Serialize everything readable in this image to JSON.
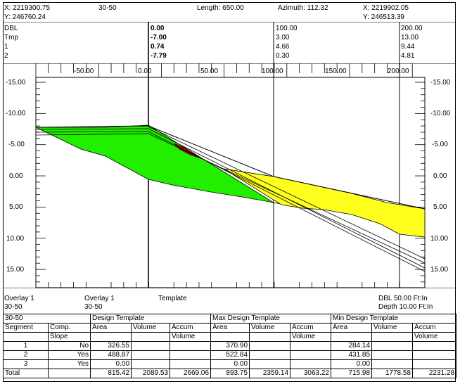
{
  "header": {
    "x_left": "X: 2219300.75",
    "y_left": "Y: 246760.24",
    "section_name": "30-50",
    "length": "Length: 650.00",
    "azimuth": "Azimuth: 112.32",
    "x_right": "X: 2219902.05",
    "y_right": "Y: 246513.39"
  },
  "row_labels": [
    "DBL",
    "Tmp",
    "1",
    "2"
  ],
  "readouts": [
    {
      "values": [
        "0.00",
        "-7.00",
        "0.74",
        "-7.79"
      ],
      "bold": true
    },
    {
      "values": [
        "100.00",
        "3.00",
        "4.66",
        "0.30"
      ],
      "bold": false
    },
    {
      "values": [
        "200.00",
        "13.00",
        "9.44",
        "4.81"
      ],
      "bold": false
    }
  ],
  "offset_ticks": [
    "-50.00",
    "0.00",
    "50.00",
    "100.00",
    "150.00",
    "200.00"
  ],
  "elev_ticks": [
    "-15.00",
    "-10.00",
    "-5.00",
    "0.00",
    "5.00",
    "10.00",
    "15.00"
  ],
  "colors": {
    "cut": "#22ee00",
    "fill": "#ffff1e",
    "red": "#cc0000",
    "line": "#000000"
  },
  "footer": {
    "overlay1_label": "Overlay 1",
    "overlay1_value": "30-50",
    "overlay2_label": "Overlay 1",
    "overlay2_value": "30-50",
    "template_label": "Template",
    "dbl_scale": "DBL 50.00 Ft:In",
    "depth_scale": "Depth 10.00 Ft:In"
  },
  "table": {
    "section": "30-50",
    "group_headers": [
      "Design Template",
      "Max Design Template",
      "Min Design Template"
    ],
    "col_headers": {
      "segment": "Segment",
      "comp": "Comp.",
      "slope": "Slope",
      "area": "Area",
      "volume": "Volume",
      "accum": "Accum",
      "accum2": "Volume"
    },
    "rows": [
      {
        "seg": "1",
        "slope": "No",
        "d_area": "326.55",
        "mx_area": "370.90",
        "mn_area": "284.14"
      },
      {
        "seg": "2",
        "slope": "Yes",
        "d_area": "488.87",
        "mx_area": "522.84",
        "mn_area": "431.85"
      },
      {
        "seg": "3",
        "slope": "Yes",
        "d_area": "0.00",
        "mx_area": "0.00",
        "mn_area": "0.00"
      }
    ],
    "total": {
      "label": "Total",
      "d_area": "815.42",
      "d_vol": "2089.53",
      "d_acc": "2669.06",
      "mx_area": "893.75",
      "mx_vol": "2359.14",
      "mx_acc": "3063.22",
      "mn_area": "715.98",
      "mn_vol": "1778.58",
      "mn_acc": "2231.28"
    }
  }
}
